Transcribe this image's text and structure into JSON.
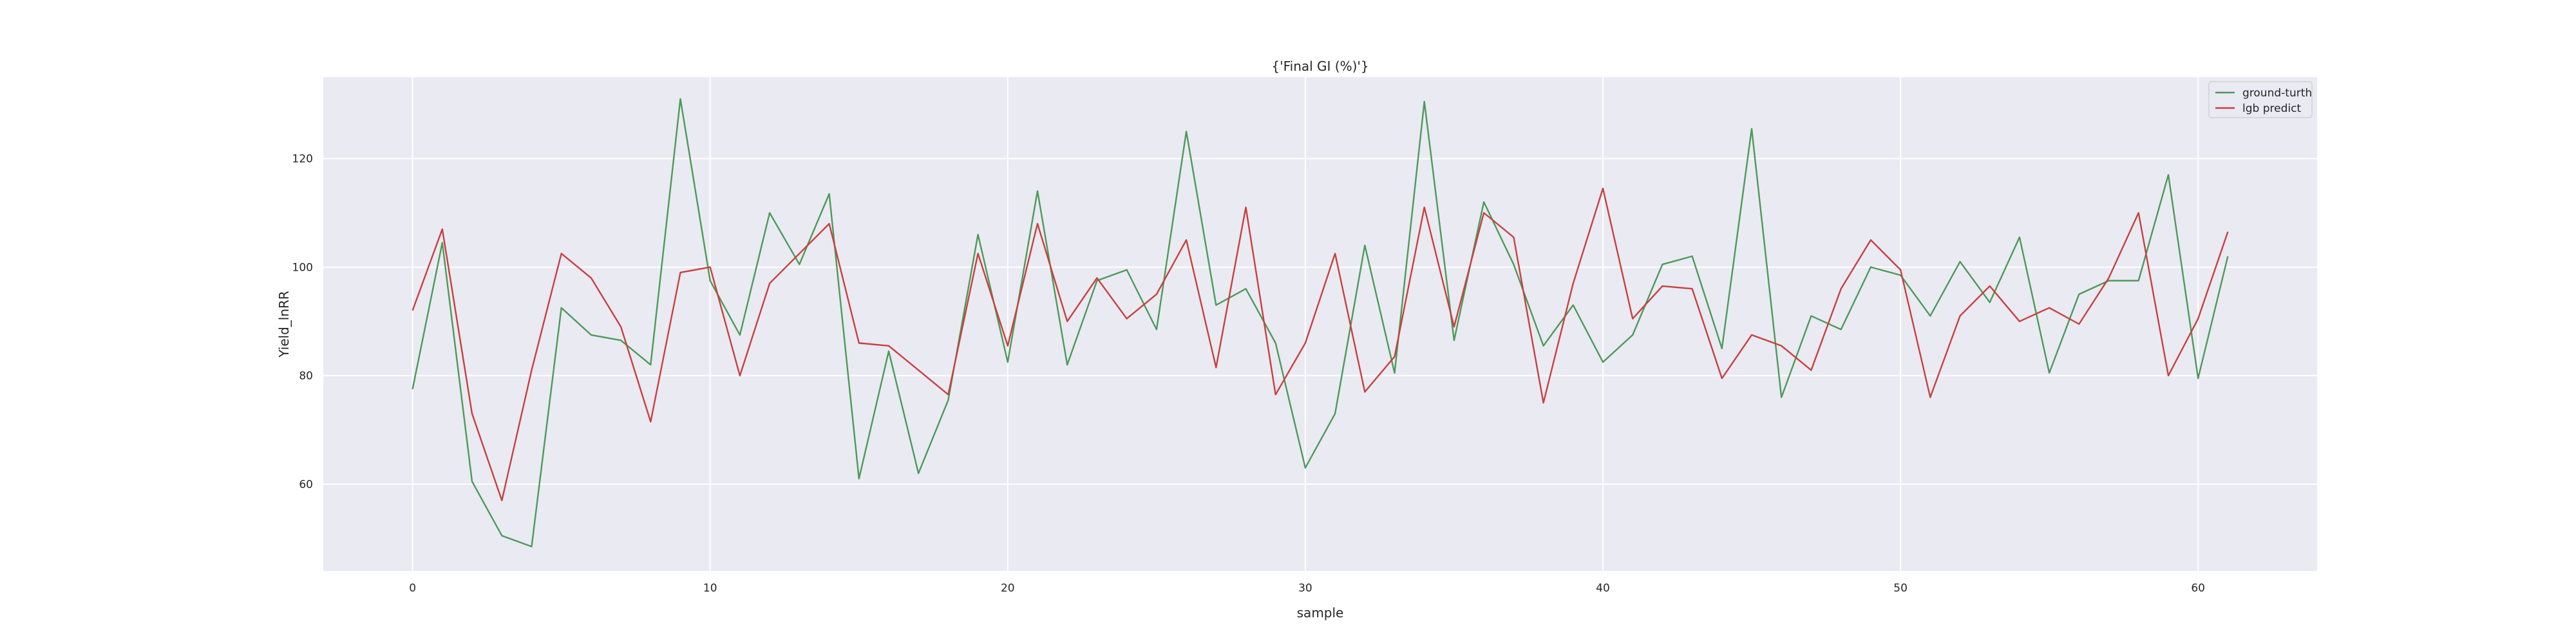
{
  "chart_data": {
    "type": "line",
    "title": "{'Final GI (%)'}",
    "xlabel": "sample",
    "ylabel": "Yield_lnRR",
    "xlim": [
      -3,
      64
    ],
    "ylim": [
      44,
      135
    ],
    "xticks": [
      0,
      10,
      20,
      30,
      40,
      50,
      60
    ],
    "yticks": [
      60,
      80,
      100,
      120
    ],
    "grid": true,
    "legend_position": "top-right",
    "x": [
      0,
      1,
      2,
      3,
      4,
      5,
      6,
      7,
      8,
      9,
      10,
      11,
      12,
      13,
      14,
      15,
      16,
      17,
      18,
      19,
      20,
      21,
      22,
      23,
      24,
      25,
      26,
      27,
      28,
      29,
      30,
      31,
      32,
      33,
      34,
      35,
      36,
      37,
      38,
      39,
      40,
      41,
      42,
      43,
      44,
      45,
      46,
      47,
      48,
      49,
      50,
      51,
      52,
      53,
      54,
      55,
      56,
      57,
      58,
      59,
      60,
      61
    ],
    "series": [
      {
        "name": "ground-turth",
        "color": "#4c9a5a",
        "values": [
          77.5,
          104.5,
          60.5,
          50.5,
          48.5,
          92.5,
          87.5,
          86.5,
          82.0,
          131.0,
          97.5,
          87.5,
          110.0,
          100.5,
          113.5,
          61.0,
          84.5,
          62.0,
          75.5,
          106.0,
          82.5,
          114.0,
          82.0,
          97.5,
          99.5,
          88.5,
          125.0,
          93.0,
          96.0,
          86.0,
          63.0,
          73.0,
          104.0,
          80.5,
          130.5,
          86.5,
          112.0,
          100.5,
          85.5,
          93.0,
          82.5,
          87.5,
          100.5,
          102.0,
          85.0,
          125.5,
          76.0,
          91.0,
          88.5,
          100.0,
          98.5,
          91.0,
          101.0,
          93.5,
          105.5,
          80.5,
          95.0,
          97.5,
          97.5,
          117.0,
          79.5,
          102.0
        ]
      },
      {
        "name": "lgb predict",
        "color": "#c8403e",
        "values": [
          92.0,
          107.0,
          73.0,
          57.0,
          81.0,
          102.5,
          98.0,
          89.0,
          71.5,
          99.0,
          100.0,
          80.0,
          97.0,
          102.5,
          108.0,
          86.0,
          85.5,
          81.0,
          76.5,
          102.5,
          85.5,
          108.0,
          90.0,
          98.0,
          90.5,
          95.0,
          105.0,
          81.5,
          111.0,
          76.5,
          86.0,
          102.5,
          77.0,
          83.5,
          111.0,
          89.0,
          110.0,
          105.5,
          75.0,
          97.0,
          114.5,
          90.5,
          96.5,
          96.0,
          79.5,
          87.5,
          85.5,
          81.0,
          96.0,
          105.0,
          99.5,
          76.0,
          91.0,
          96.5,
          90.0,
          92.5,
          89.5,
          98.0,
          110.0,
          80.0,
          90.5,
          106.5
        ]
      }
    ]
  }
}
